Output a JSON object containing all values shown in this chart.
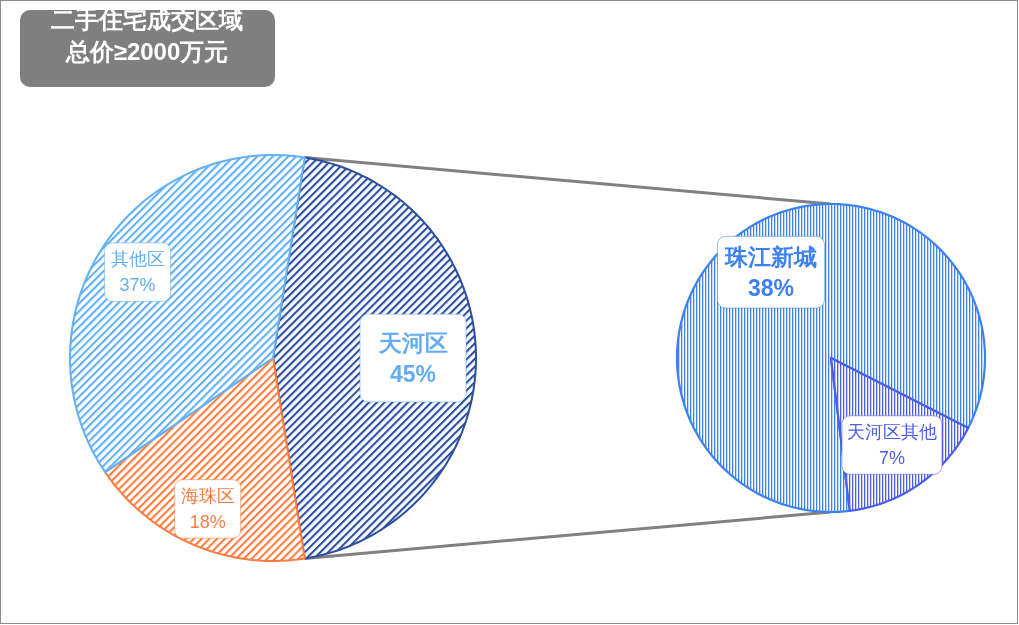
{
  "chart_data": [
    {
      "type": "pie",
      "title": "二手住宅成交区域",
      "subtitle": "总价≥2000万元",
      "categories": [
        "天河区",
        "海珠区",
        "其他区"
      ],
      "values": [
        45,
        18,
        37
      ],
      "colors": [
        "#2b4f9e",
        "#ff7c40",
        "#63b0f2"
      ],
      "value_labels": [
        "45%",
        "18%",
        "37%"
      ]
    },
    {
      "type": "pie",
      "categories": [
        "珠江新城",
        "天河区其他"
      ],
      "values": [
        38,
        7
      ],
      "colors": [
        "#3b82f0",
        "#4a5fe6"
      ],
      "value_labels": [
        "38%",
        "7%"
      ]
    }
  ]
}
